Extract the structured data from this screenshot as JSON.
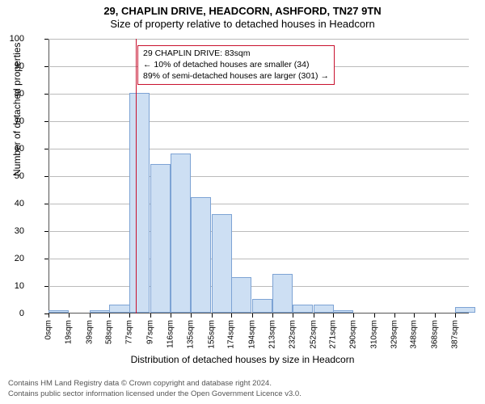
{
  "title": "29, CHAPLIN DRIVE, HEADCORN, ASHFORD, TN27 9TN",
  "subtitle": "Size of property relative to detached houses in Headcorn",
  "xlabel": "Distribution of detached houses by size in Headcorn",
  "ylabel": "Number of detached properties",
  "chart": {
    "type": "histogram",
    "background_color": "#ffffff",
    "axis_color": "#555555",
    "grid_color": "#bbbbbb",
    "bar_fill": "#cddff3",
    "bar_border": "#7da3d4",
    "ref_line_color": "#c8112e",
    "title_fontsize": 13,
    "label_fontsize": 12,
    "tick_fontsize": 11,
    "xlim": [
      0,
      400
    ],
    "ylim": [
      0,
      100
    ],
    "ytick_step": 10,
    "x_bin_width_sqm": 19.36,
    "x_tick_values": [
      0,
      19,
      39,
      58,
      77,
      97,
      116,
      135,
      155,
      174,
      194,
      213,
      232,
      252,
      271,
      290,
      310,
      329,
      348,
      368,
      387
    ],
    "x_tick_unit": "sqm",
    "bars": [
      {
        "x0": 0,
        "count": 1
      },
      {
        "x0": 19,
        "count": 0
      },
      {
        "x0": 39,
        "count": 1
      },
      {
        "x0": 58,
        "count": 3
      },
      {
        "x0": 77,
        "count": 80
      },
      {
        "x0": 97,
        "count": 54
      },
      {
        "x0": 116,
        "count": 58
      },
      {
        "x0": 135,
        "count": 42
      },
      {
        "x0": 155,
        "count": 36
      },
      {
        "x0": 174,
        "count": 13
      },
      {
        "x0": 194,
        "count": 5
      },
      {
        "x0": 213,
        "count": 14
      },
      {
        "x0": 232,
        "count": 3
      },
      {
        "x0": 252,
        "count": 3
      },
      {
        "x0": 271,
        "count": 1
      },
      {
        "x0": 290,
        "count": 0
      },
      {
        "x0": 310,
        "count": 0
      },
      {
        "x0": 329,
        "count": 0
      },
      {
        "x0": 348,
        "count": 0
      },
      {
        "x0": 368,
        "count": 0
      },
      {
        "x0": 387,
        "count": 2
      }
    ],
    "ref_line_x": 83,
    "annotation": {
      "line1": "29 CHAPLIN DRIVE: 83sqm",
      "line2": "← 10% of detached houses are smaller (34)",
      "line3": "89% of semi-detached houses are larger (301) →",
      "border_color": "#c8112e",
      "fontsize": 10.5
    }
  },
  "footer": {
    "line1": "Contains HM Land Registry data © Crown copyright and database right 2024.",
    "line2": "Contains public sector information licensed under the Open Government Licence v3.0."
  }
}
